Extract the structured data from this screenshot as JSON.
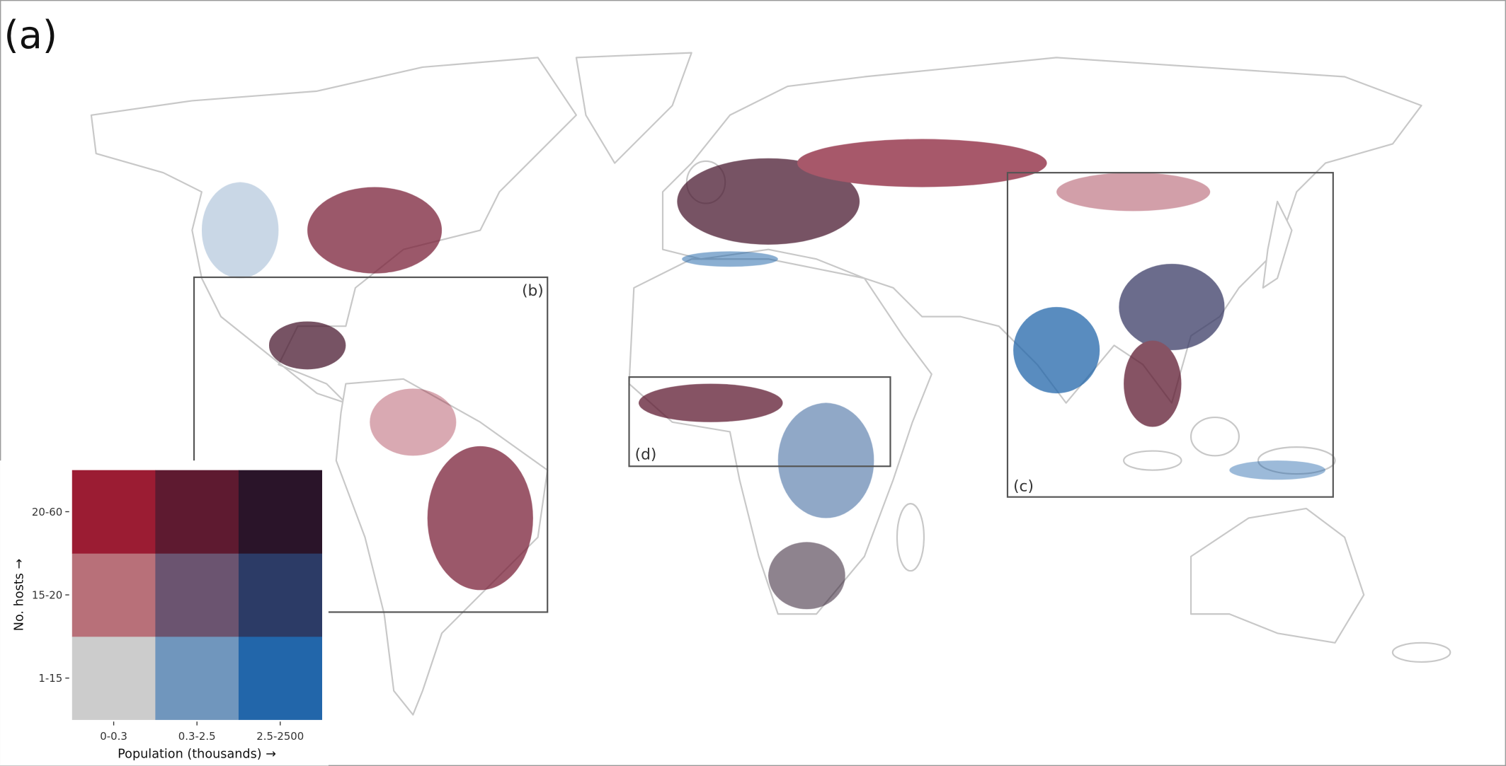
{
  "panel_label": "(a)",
  "insets": [
    {
      "label": "(b)"
    },
    {
      "label": "(c)"
    },
    {
      "label": "(d)"
    }
  ],
  "legend": {
    "x_title": "Population (thousands) →",
    "y_title": "No. hosts →",
    "x_labels": [
      "0-0.3",
      "0.3-2.5",
      "2.5-2500"
    ],
    "y_labels": [
      "1-15",
      "15-20",
      "20-60"
    ],
    "colors": [
      [
        "#cccccc",
        "#7096bd",
        "#2266aa"
      ],
      [
        "#b87079",
        "#6b5470",
        "#2c3b66"
      ],
      [
        "#9b1c33",
        "#5e1a30",
        "#2a1429"
      ]
    ]
  }
}
